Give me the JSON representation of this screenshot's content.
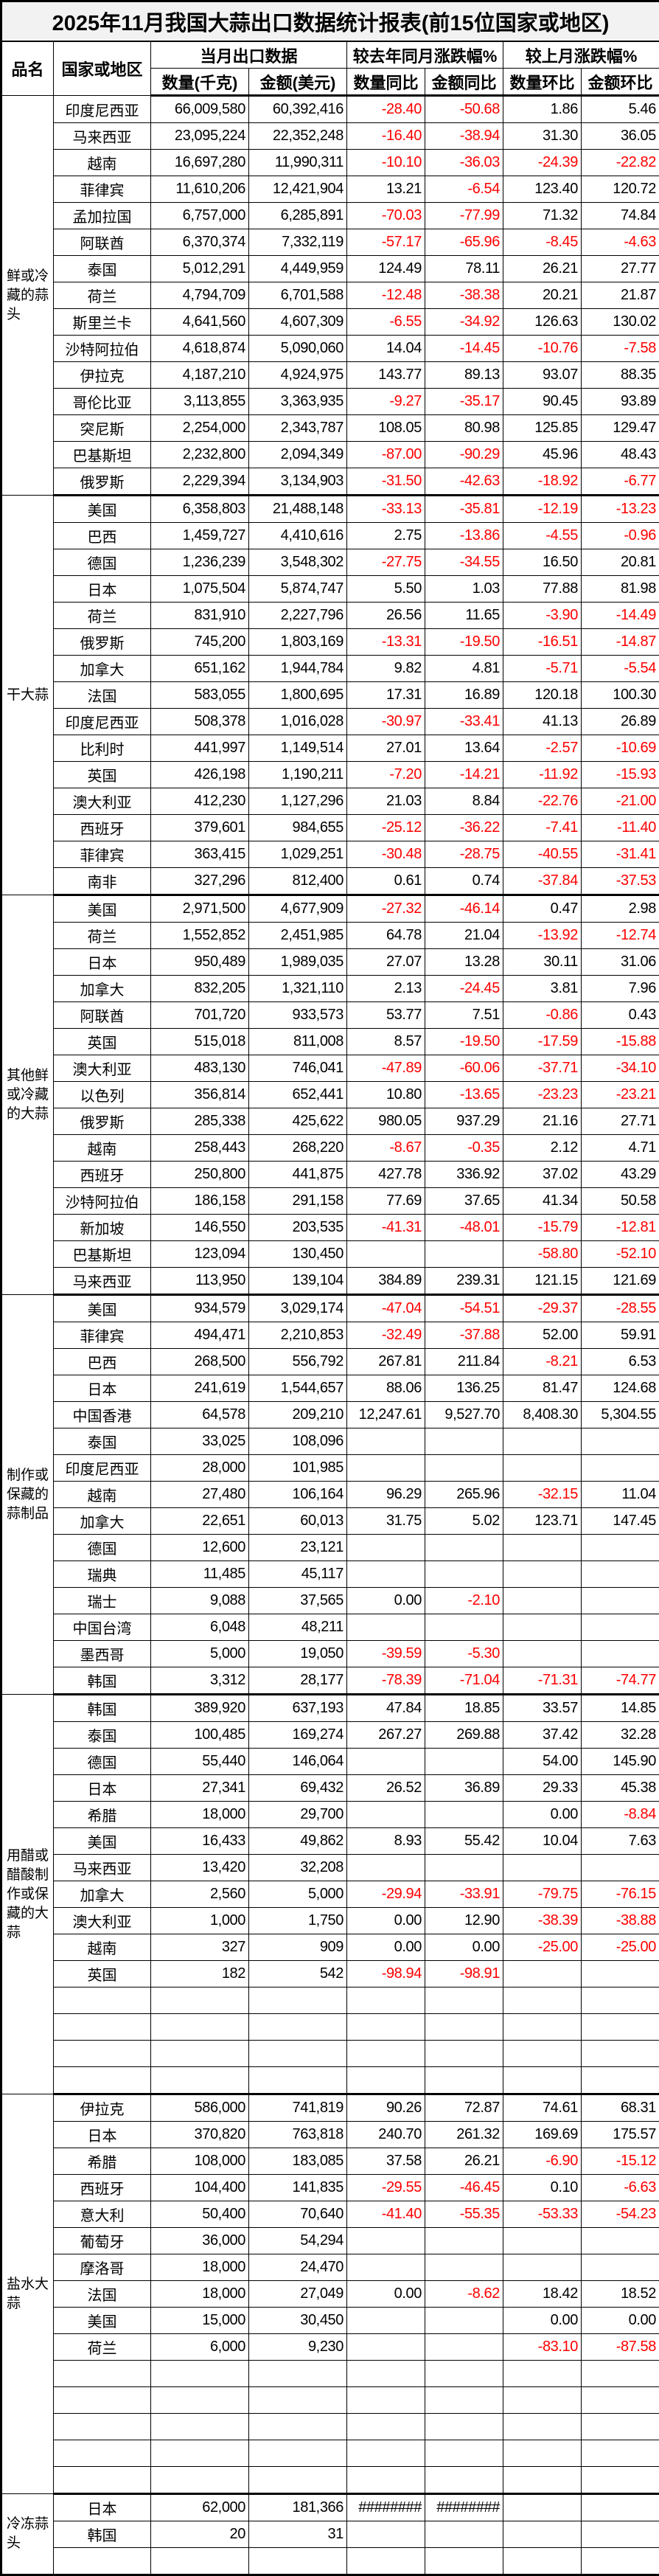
{
  "title": "2025年11月我国大蒜出口数据统计报表(前15位国家或地区)",
  "headers": {
    "product": "品名",
    "country": "国家或地区",
    "current_month": "当月出口数据",
    "yoy": "较去年同月涨跌幅%",
    "mom": "较上月涨跌幅%",
    "qty": "数量(千克)",
    "amount": "金额(美元)",
    "yoy_qty": "数量同比",
    "yoy_amount": "金额同比",
    "mom_qty": "数量环比",
    "mom_amount": "金额环比"
  },
  "colors": {
    "negative": "#ff0000",
    "title_bg": "#f2f2f2"
  },
  "sections": [
    {
      "label": "鲜或冷藏的蒜头",
      "rows": [
        [
          "印度尼西亚",
          "66,009,580",
          "60,392,416",
          "-28.40",
          "-50.68",
          "1.86",
          "5.46"
        ],
        [
          "马来西亚",
          "23,095,224",
          "22,352,248",
          "-16.40",
          "-38.94",
          "31.30",
          "36.05"
        ],
        [
          "越南",
          "16,697,280",
          "11,990,311",
          "-10.10",
          "-36.03",
          "-24.39",
          "-22.82"
        ],
        [
          "菲律宾",
          "11,610,206",
          "12,421,904",
          "13.21",
          "-6.54",
          "123.40",
          "120.72"
        ],
        [
          "孟加拉国",
          "6,757,000",
          "6,285,891",
          "-70.03",
          "-77.99",
          "71.32",
          "74.84"
        ],
        [
          "阿联酋",
          "6,370,374",
          "7,332,119",
          "-57.17",
          "-65.96",
          "-8.45",
          "-4.63"
        ],
        [
          "泰国",
          "5,012,291",
          "4,449,959",
          "124.49",
          "78.11",
          "26.21",
          "27.77"
        ],
        [
          "荷兰",
          "4,794,709",
          "6,701,588",
          "-12.48",
          "-38.38",
          "20.21",
          "21.87"
        ],
        [
          "斯里兰卡",
          "4,641,560",
          "4,607,309",
          "-6.55",
          "-34.92",
          "126.63",
          "130.02"
        ],
        [
          "沙特阿拉伯",
          "4,618,874",
          "5,090,060",
          "14.04",
          "-14.45",
          "-10.76",
          "-7.58"
        ],
        [
          "伊拉克",
          "4,187,210",
          "4,924,975",
          "143.77",
          "89.13",
          "93.07",
          "88.35"
        ],
        [
          "哥伦比亚",
          "3,113,855",
          "3,363,935",
          "-9.27",
          "-35.17",
          "90.45",
          "93.89"
        ],
        [
          "突尼斯",
          "2,254,000",
          "2,343,787",
          "108.05",
          "80.98",
          "125.85",
          "129.47"
        ],
        [
          "巴基斯坦",
          "2,232,800",
          "2,094,349",
          "-87.00",
          "-90.29",
          "45.96",
          "48.43"
        ],
        [
          "俄罗斯",
          "2,229,394",
          "3,134,903",
          "-31.50",
          "-42.63",
          "-18.92",
          "-6.77"
        ]
      ]
    },
    {
      "label": "干大蒜",
      "rows": [
        [
          "美国",
          "6,358,803",
          "21,488,148",
          "-33.13",
          "-35.81",
          "-12.19",
          "-13.23"
        ],
        [
          "巴西",
          "1,459,727",
          "4,410,616",
          "2.75",
          "-13.86",
          "-4.55",
          "-0.96"
        ],
        [
          "德国",
          "1,236,239",
          "3,548,302",
          "-27.75",
          "-34.55",
          "16.50",
          "20.81"
        ],
        [
          "日本",
          "1,075,504",
          "5,874,747",
          "5.50",
          "1.03",
          "77.88",
          "81.98"
        ],
        [
          "荷兰",
          "831,910",
          "2,227,796",
          "26.56",
          "11.65",
          "-3.90",
          "-14.49"
        ],
        [
          "俄罗斯",
          "745,200",
          "1,803,169",
          "-13.31",
          "-19.50",
          "-16.51",
          "-14.87"
        ],
        [
          "加拿大",
          "651,162",
          "1,944,784",
          "9.82",
          "4.81",
          "-5.71",
          "-5.54"
        ],
        [
          "法国",
          "583,055",
          "1,800,695",
          "17.31",
          "16.89",
          "120.18",
          "100.30"
        ],
        [
          "印度尼西亚",
          "508,378",
          "1,016,028",
          "-30.97",
          "-33.41",
          "41.13",
          "26.89"
        ],
        [
          "比利时",
          "441,997",
          "1,149,514",
          "27.01",
          "13.64",
          "-2.57",
          "-10.69"
        ],
        [
          "英国",
          "426,198",
          "1,190,211",
          "-7.20",
          "-14.21",
          "-11.92",
          "-15.93"
        ],
        [
          "澳大利亚",
          "412,230",
          "1,127,296",
          "21.03",
          "8.84",
          "-22.76",
          "-21.00"
        ],
        [
          "西班牙",
          "379,601",
          "984,655",
          "-25.12",
          "-36.22",
          "-7.41",
          "-11.40"
        ],
        [
          "菲律宾",
          "363,415",
          "1,029,251",
          "-30.48",
          "-28.75",
          "-40.55",
          "-31.41"
        ],
        [
          "南非",
          "327,296",
          "812,400",
          "0.61",
          "0.74",
          "-37.84",
          "-37.53"
        ]
      ]
    },
    {
      "label": "其他鲜或冷藏的大蒜",
      "rows": [
        [
          "美国",
          "2,971,500",
          "4,677,909",
          "-27.32",
          "-46.14",
          "0.47",
          "2.98"
        ],
        [
          "荷兰",
          "1,552,852",
          "2,451,985",
          "64.78",
          "21.04",
          "-13.92",
          "-12.74"
        ],
        [
          "日本",
          "950,489",
          "1,989,035",
          "27.07",
          "13.28",
          "30.11",
          "31.06"
        ],
        [
          "加拿大",
          "832,205",
          "1,321,110",
          "2.13",
          "-24.45",
          "3.81",
          "7.96"
        ],
        [
          "阿联酋",
          "701,720",
          "933,573",
          "53.77",
          "7.51",
          "-0.86",
          "0.43"
        ],
        [
          "英国",
          "515,018",
          "811,008",
          "8.57",
          "-19.50",
          "-17.59",
          "-15.88"
        ],
        [
          "澳大利亚",
          "483,130",
          "746,041",
          "-47.89",
          "-60.06",
          "-37.71",
          "-34.10"
        ],
        [
          "以色列",
          "356,814",
          "652,441",
          "10.80",
          "-13.65",
          "-23.23",
          "-23.21"
        ],
        [
          "俄罗斯",
          "285,338",
          "425,622",
          "980.05",
          "937.29",
          "21.16",
          "27.71"
        ],
        [
          "越南",
          "258,443",
          "268,220",
          "-8.67",
          "-0.35",
          "2.12",
          "4.71"
        ],
        [
          "西班牙",
          "250,800",
          "441,875",
          "427.78",
          "336.92",
          "37.02",
          "43.29"
        ],
        [
          "沙特阿拉伯",
          "186,158",
          "291,158",
          "77.69",
          "37.65",
          "41.34",
          "50.58"
        ],
        [
          "新加坡",
          "146,550",
          "203,535",
          "-41.31",
          "-48.01",
          "-15.79",
          "-12.81"
        ],
        [
          "巴基斯坦",
          "123,094",
          "130,450",
          "",
          "",
          "-58.80",
          "-52.10"
        ],
        [
          "马来西亚",
          "113,950",
          "139,104",
          "384.89",
          "239.31",
          "121.15",
          "121.69"
        ]
      ]
    },
    {
      "label": "制作或保藏的蒜制品",
      "rows": [
        [
          "美国",
          "934,579",
          "3,029,174",
          "-47.04",
          "-54.51",
          "-29.37",
          "-28.55"
        ],
        [
          "菲律宾",
          "494,471",
          "2,210,853",
          "-32.49",
          "-37.88",
          "52.00",
          "59.91"
        ],
        [
          "巴西",
          "268,500",
          "556,792",
          "267.81",
          "211.84",
          "-8.21",
          "6.53"
        ],
        [
          "日本",
          "241,619",
          "1,544,657",
          "88.06",
          "136.25",
          "81.47",
          "124.68"
        ],
        [
          "中国香港",
          "64,578",
          "209,210",
          "12,247.61",
          "9,527.70",
          "8,408.30",
          "5,304.55"
        ],
        [
          "泰国",
          "33,025",
          "108,096",
          "",
          "",
          "",
          ""
        ],
        [
          "印度尼西亚",
          "28,000",
          "101,985",
          "",
          "",
          "",
          ""
        ],
        [
          "越南",
          "27,480",
          "106,164",
          "96.29",
          "265.96",
          "-32.15",
          "11.04"
        ],
        [
          "加拿大",
          "22,651",
          "60,013",
          "31.75",
          "5.02",
          "123.71",
          "147.45"
        ],
        [
          "德国",
          "12,600",
          "23,121",
          "",
          "",
          "",
          ""
        ],
        [
          "瑞典",
          "11,485",
          "45,117",
          "",
          "",
          "",
          ""
        ],
        [
          "瑞士",
          "9,088",
          "37,565",
          "0.00",
          "-2.10",
          "",
          ""
        ],
        [
          "中国台湾",
          "6,048",
          "48,211",
          "",
          "",
          "",
          ""
        ],
        [
          "墨西哥",
          "5,000",
          "19,050",
          "-39.59",
          "-5.30",
          "",
          ""
        ],
        [
          "韩国",
          "3,312",
          "28,177",
          "-78.39",
          "-71.04",
          "-71.31",
          "-74.77"
        ]
      ]
    },
    {
      "label": "用醋或醋酸制作或保藏的大蒜",
      "rows": [
        [
          "韩国",
          "389,920",
          "637,193",
          "47.84",
          "18.85",
          "33.57",
          "14.85"
        ],
        [
          "泰国",
          "100,485",
          "169,274",
          "267.27",
          "269.88",
          "37.42",
          "32.28"
        ],
        [
          "德国",
          "55,440",
          "146,064",
          "",
          "",
          "54.00",
          "145.90"
        ],
        [
          "日本",
          "27,341",
          "69,432",
          "26.52",
          "36.89",
          "29.33",
          "45.38"
        ],
        [
          "希腊",
          "18,000",
          "29,700",
          "",
          "",
          "0.00",
          "-8.84"
        ],
        [
          "美国",
          "16,433",
          "49,862",
          "8.93",
          "55.42",
          "10.04",
          "7.63"
        ],
        [
          "马来西亚",
          "13,420",
          "32,208",
          "",
          "",
          "",
          ""
        ],
        [
          "加拿大",
          "2,560",
          "5,000",
          "-29.94",
          "-33.91",
          "-79.75",
          "-76.15"
        ],
        [
          "澳大利亚",
          "1,000",
          "1,750",
          "0.00",
          "12.90",
          "-38.39",
          "-38.88"
        ],
        [
          "越南",
          "327",
          "909",
          "0.00",
          "0.00",
          "-25.00",
          "-25.00"
        ],
        [
          "英国",
          "182",
          "542",
          "-98.94",
          "-98.91",
          "",
          ""
        ],
        [
          "",
          "",
          "",
          "",
          "",
          "",
          ""
        ],
        [
          "",
          "",
          "",
          "",
          "",
          "",
          ""
        ],
        [
          "",
          "",
          "",
          "",
          "",
          "",
          ""
        ],
        [
          "",
          "",
          "",
          "",
          "",
          "",
          ""
        ]
      ]
    },
    {
      "label": "盐水大蒜",
      "rows": [
        [
          "伊拉克",
          "586,000",
          "741,819",
          "90.26",
          "72.87",
          "74.61",
          "68.31"
        ],
        [
          "日本",
          "370,820",
          "763,818",
          "240.70",
          "261.32",
          "169.69",
          "175.57"
        ],
        [
          "希腊",
          "108,000",
          "183,085",
          "37.58",
          "26.21",
          "-6.90",
          "-15.12"
        ],
        [
          "西班牙",
          "104,400",
          "141,835",
          "-29.55",
          "-46.45",
          "0.10",
          "-6.63"
        ],
        [
          "意大利",
          "50,400",
          "70,640",
          "-41.40",
          "-55.35",
          "-53.33",
          "-54.23"
        ],
        [
          "葡萄牙",
          "36,000",
          "54,294",
          "",
          "",
          "",
          ""
        ],
        [
          "摩洛哥",
          "18,000",
          "24,470",
          "",
          "",
          "",
          ""
        ],
        [
          "法国",
          "18,000",
          "27,049",
          "0.00",
          "-8.62",
          "18.42",
          "18.52"
        ],
        [
          "美国",
          "15,000",
          "30,450",
          "",
          "",
          "0.00",
          "0.00"
        ],
        [
          "荷兰",
          "6,000",
          "9,230",
          "",
          "",
          "-83.10",
          "-87.58"
        ],
        [
          "",
          "",
          "",
          "",
          "",
          "",
          ""
        ],
        [
          "",
          "",
          "",
          "",
          "",
          "",
          ""
        ],
        [
          "",
          "",
          "",
          "",
          "",
          "",
          ""
        ],
        [
          "",
          "",
          "",
          "",
          "",
          "",
          ""
        ],
        [
          "",
          "",
          "",
          "",
          "",
          "",
          ""
        ]
      ]
    },
    {
      "label": "冷冻蒜头",
      "rows": [
        [
          "日本",
          "62,000",
          "181,366",
          "########",
          "########",
          "",
          ""
        ],
        [
          "韩国",
          "20",
          "31",
          "",
          "",
          "",
          ""
        ],
        [
          "",
          "",
          "",
          "",
          "",
          "",
          ""
        ]
      ]
    }
  ]
}
